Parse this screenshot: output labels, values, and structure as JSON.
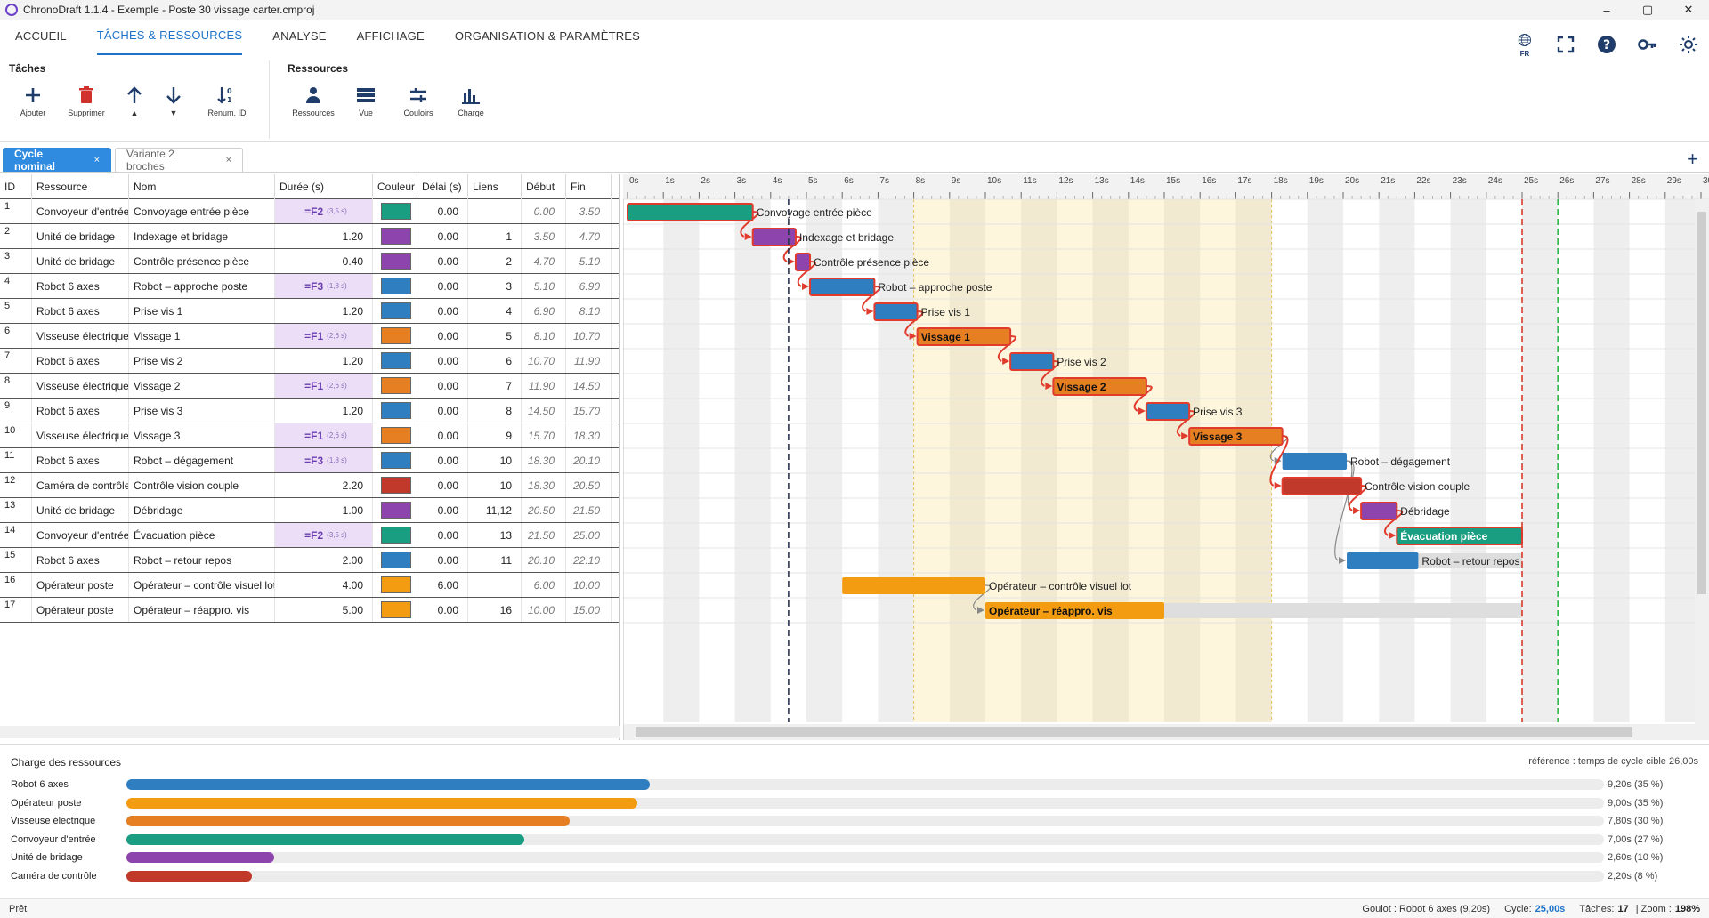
{
  "window": {
    "title": "ChronoDraft 1.1.4 - Exemple - Poste 30 vissage carter.cmproj",
    "minimize": "–",
    "maximize": "▢",
    "close": "✕"
  },
  "ribbon_tabs": [
    "ACCUEIL",
    "TÂCHES & RESSOURCES",
    "ANALYSE",
    "AFFICHAGE",
    "ORGANISATION & PARAMÈTRES"
  ],
  "ribbon_right": {
    "lang": "FR"
  },
  "groups": {
    "taches": {
      "title": "Tâches",
      "ajouter": "Ajouter",
      "supprimer": "Supprimer",
      "up": "▲",
      "down": "▼",
      "renum": "Renum. ID"
    },
    "ressources": {
      "title": "Ressources",
      "ressources": "Ressources",
      "vue": "Vue",
      "couloirs": "Couloirs",
      "charge": "Charge"
    }
  },
  "doc_tabs": [
    {
      "label": "Cycle nominal",
      "close": "×"
    },
    {
      "label": "Variante 2 broches",
      "close": "×"
    }
  ],
  "grid_headers": [
    "ID",
    "Ressource",
    "Nom",
    "Durée (s)",
    "Couleur",
    "Délai (s)",
    "Liens",
    "Début",
    "Fin"
  ],
  "tasks": [
    {
      "id": "1",
      "res": "Convoyeur d'entrée",
      "nom": "Convoyage entrée pièce",
      "dur": "=F2",
      "durnote": "(3,5 s)",
      "color": "#1a9e82",
      "delai": "0.00",
      "liens": "",
      "debut": "0.00",
      "fin": "3.50",
      "start": 0,
      "end": 3.5,
      "label": "Convoyage entrée pièce",
      "inside": false,
      "crit": true
    },
    {
      "id": "2",
      "res": "Unité de bridage",
      "nom": "Indexage et bridage",
      "dur": "1.20",
      "durnote": "",
      "color": "#8e44ad",
      "delai": "0.00",
      "liens": "1",
      "debut": "3.50",
      "fin": "4.70",
      "start": 3.5,
      "end": 4.7,
      "label": "Indexage et bridage",
      "inside": false,
      "crit": true
    },
    {
      "id": "3",
      "res": "Unité de bridage",
      "nom": "Contrôle présence pièce",
      "dur": "0.40",
      "durnote": "",
      "color": "#8e44ad",
      "delai": "0.00",
      "liens": "2",
      "debut": "4.70",
      "fin": "5.10",
      "start": 4.7,
      "end": 5.1,
      "label": "Contrôle présence pièce",
      "inside": false,
      "crit": true
    },
    {
      "id": "4",
      "res": "Robot 6 axes",
      "nom": "Robot – approche poste",
      "dur": "=F3",
      "durnote": "(1,8 s)",
      "color": "#2f7ebf",
      "delai": "0.00",
      "liens": "3",
      "debut": "5.10",
      "fin": "6.90",
      "start": 5.1,
      "end": 6.9,
      "label": "Robot – approche poste",
      "inside": false,
      "crit": true
    },
    {
      "id": "5",
      "res": "Robot 6 axes",
      "nom": "Prise vis 1",
      "dur": "1.20",
      "durnote": "",
      "color": "#2f7ebf",
      "delai": "0.00",
      "liens": "4",
      "debut": "6.90",
      "fin": "8.10",
      "start": 6.9,
      "end": 8.1,
      "label": "Prise vis 1",
      "inside": false,
      "crit": true
    },
    {
      "id": "6",
      "res": "Visseuse électrique",
      "nom": "Vissage 1",
      "dur": "=F1",
      "durnote": "(2,6 s)",
      "color": "#e67e22",
      "delai": "0.00",
      "liens": "5",
      "debut": "8.10",
      "fin": "10.70",
      "start": 8.1,
      "end": 10.7,
      "label": "Vissage 1",
      "inside": true,
      "crit": true
    },
    {
      "id": "7",
      "res": "Robot 6 axes",
      "nom": "Prise vis 2",
      "dur": "1.20",
      "durnote": "",
      "color": "#2f7ebf",
      "delai": "0.00",
      "liens": "6",
      "debut": "10.70",
      "fin": "11.90",
      "start": 10.7,
      "end": 11.9,
      "label": "Prise vis 2",
      "inside": false,
      "crit": true
    },
    {
      "id": "8",
      "res": "Visseuse électrique",
      "nom": "Vissage 2",
      "dur": "=F1",
      "durnote": "(2,6 s)",
      "color": "#e67e22",
      "delai": "0.00",
      "liens": "7",
      "debut": "11.90",
      "fin": "14.50",
      "start": 11.9,
      "end": 14.5,
      "label": "Vissage 2",
      "inside": true,
      "crit": true
    },
    {
      "id": "9",
      "res": "Robot 6 axes",
      "nom": "Prise vis 3",
      "dur": "1.20",
      "durnote": "",
      "color": "#2f7ebf",
      "delai": "0.00",
      "liens": "8",
      "debut": "14.50",
      "fin": "15.70",
      "start": 14.5,
      "end": 15.7,
      "label": "Prise vis 3",
      "inside": false,
      "crit": true
    },
    {
      "id": "10",
      "res": "Visseuse électrique",
      "nom": "Vissage 3",
      "dur": "=F1",
      "durnote": "(2,6 s)",
      "color": "#e67e22",
      "delai": "0.00",
      "liens": "9",
      "debut": "15.70",
      "fin": "18.30",
      "start": 15.7,
      "end": 18.3,
      "label": "Vissage 3",
      "inside": true,
      "crit": true
    },
    {
      "id": "11",
      "res": "Robot 6 axes",
      "nom": "Robot – dégagement",
      "dur": "=F3",
      "durnote": "(1,8 s)",
      "color": "#2f7ebf",
      "delai": "0.00",
      "liens": "10",
      "debut": "18.30",
      "fin": "20.10",
      "start": 18.3,
      "end": 20.1,
      "label": "Robot – dégagement",
      "inside": false,
      "crit": false
    },
    {
      "id": "12",
      "res": "Caméra de contrôle",
      "nom": "Contrôle vision couple",
      "dur": "2.20",
      "durnote": "",
      "color": "#c0392b",
      "delai": "0.00",
      "liens": "10",
      "debut": "18.30",
      "fin": "20.50",
      "start": 18.3,
      "end": 20.5,
      "label": "Contrôle vision couple",
      "inside": false,
      "crit": true
    },
    {
      "id": "13",
      "res": "Unité de bridage",
      "nom": "Débridage",
      "dur": "1.00",
      "durnote": "",
      "color": "#8e44ad",
      "delai": "0.00",
      "liens": "11,12",
      "debut": "20.50",
      "fin": "21.50",
      "start": 20.5,
      "end": 21.5,
      "label": "Débridage",
      "inside": false,
      "crit": true
    },
    {
      "id": "14",
      "res": "Convoyeur d'entrée",
      "nom": "Évacuation pièce",
      "dur": "=F2",
      "durnote": "(3,5 s)",
      "color": "#1a9e82",
      "delai": "0.00",
      "liens": "13",
      "debut": "21.50",
      "fin": "25.00",
      "start": 21.5,
      "end": 25.0,
      "label": "Évacuation pièce",
      "inside": true,
      "crit": true
    },
    {
      "id": "15",
      "res": "Robot 6 axes",
      "nom": "Robot – retour repos",
      "dur": "2.00",
      "durnote": "",
      "color": "#2f7ebf",
      "delai": "0.00",
      "liens": "11",
      "debut": "20.10",
      "fin": "22.10",
      "start": 20.1,
      "end": 22.1,
      "label": "Robot – retour repos",
      "inside": false,
      "crit": false
    },
    {
      "id": "16",
      "res": "Opérateur poste",
      "nom": "Opérateur – contrôle visuel lot",
      "dur": "4.00",
      "durnote": "",
      "color": "#f39c12",
      "delai": "6.00",
      "liens": "",
      "debut": "6.00",
      "fin": "10.00",
      "start": 6.0,
      "end": 10.0,
      "label": "Opérateur – contrôle visuel lot",
      "inside": false,
      "crit": false
    },
    {
      "id": "17",
      "res": "Opérateur poste",
      "nom": "Opérateur – réappro. vis",
      "dur": "5.00",
      "durnote": "",
      "color": "#f39c12",
      "delai": "0.00",
      "liens": "16",
      "debut": "10.00",
      "fin": "15.00",
      "start": 10.0,
      "end": 15.0,
      "label": "Opérateur – réappro. vis",
      "inside": true,
      "crit": false
    }
  ],
  "gantt": {
    "ticks_max": 30,
    "tick_suffix": "s",
    "marker_current": 4.5,
    "marker_cycle": 25.0,
    "marker_target": 26.0,
    "highlight_from": 8.0,
    "highlight_to": 18.0
  },
  "charge": {
    "title": "Charge des ressources",
    "ref": "référence : temps de cycle cible 26,00s",
    "rows": [
      {
        "name": "Robot 6 axes",
        "value": "9,20s  (35 %)",
        "frac": 0.354,
        "color": "#2f7ebf"
      },
      {
        "name": "Opérateur poste",
        "value": "9,00s  (35 %)",
        "frac": 0.346,
        "color": "#f39c12"
      },
      {
        "name": "Visseuse électrique",
        "value": "7,80s  (30 %)",
        "frac": 0.3,
        "color": "#e67e22"
      },
      {
        "name": "Convoyeur d'entrée",
        "value": "7,00s  (27 %)",
        "frac": 0.269,
        "color": "#1a9e82"
      },
      {
        "name": "Unité de bridage",
        "value": "2,60s  (10 %)",
        "frac": 0.1,
        "color": "#8e44ad"
      },
      {
        "name": "Caméra de contrôle",
        "value": "2,20s  (8 %)",
        "frac": 0.085,
        "color": "#c0392b"
      }
    ]
  },
  "status": {
    "ready": "Prêt",
    "goulot": "Goulot : Robot 6 axes (9,20s)",
    "cycle_label": "Cycle:",
    "cycle_value": "25,00s",
    "taches_label": "Tâches:",
    "taches_value": "17",
    "zoom_label": "| Zoom :",
    "zoom_value": "198%"
  }
}
